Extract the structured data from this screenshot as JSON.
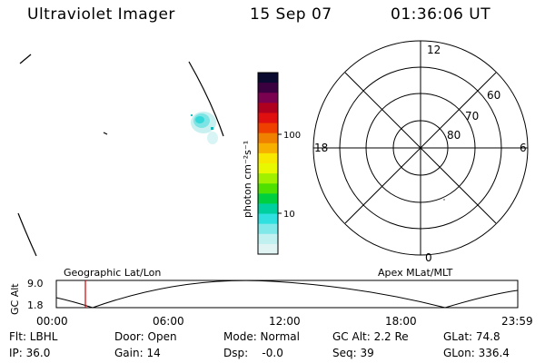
{
  "header": {
    "instrument": "Ultraviolet Imager",
    "date": "15 Sep 07",
    "time": "01:36:06 UT"
  },
  "colorbar": {
    "unit_label": "photon cm⁻²s⁻¹",
    "ticks": [
      "100",
      "10"
    ],
    "colors": [
      "#0a0a30",
      "#3a0040",
      "#7a0050",
      "#b00020",
      "#e01010",
      "#f04000",
      "#f08000",
      "#f8b000",
      "#f8e800",
      "#e8f800",
      "#a0f000",
      "#50e000",
      "#00d040",
      "#00d0a0",
      "#30e0e0",
      "#80e8e8",
      "#c0f0f0",
      "#e0f4f4"
    ]
  },
  "polar_plot": {
    "mlt_labels": [
      "12",
      "6",
      "0",
      "18"
    ],
    "lat_labels": [
      "60",
      "70",
      "80"
    ]
  },
  "timeline": {
    "axis_label": "GC Alt",
    "y_ticks": [
      "9.0",
      "1.8"
    ],
    "left_title": "Geographic Lat/Lon",
    "right_title": "Apex MLat/MLT",
    "x_ticks": [
      "00:00",
      "06:00",
      "12:00",
      "18:00",
      "23:59"
    ],
    "marker_color": "#d00000"
  },
  "info": {
    "row1": {
      "flt": "Flt: LBHL",
      "door": "Door: Open",
      "mode": "Mode: Normal",
      "gc_alt": "GC Alt: 2.2 Re",
      "glat": "GLat:  74.8"
    },
    "row2": {
      "ip": "IP: 36.0",
      "gain": "Gain: 14",
      "dsp": "Dsp:    -0.0",
      "seq": "Seq: 39",
      "glon": "GLon: 336.4"
    }
  }
}
